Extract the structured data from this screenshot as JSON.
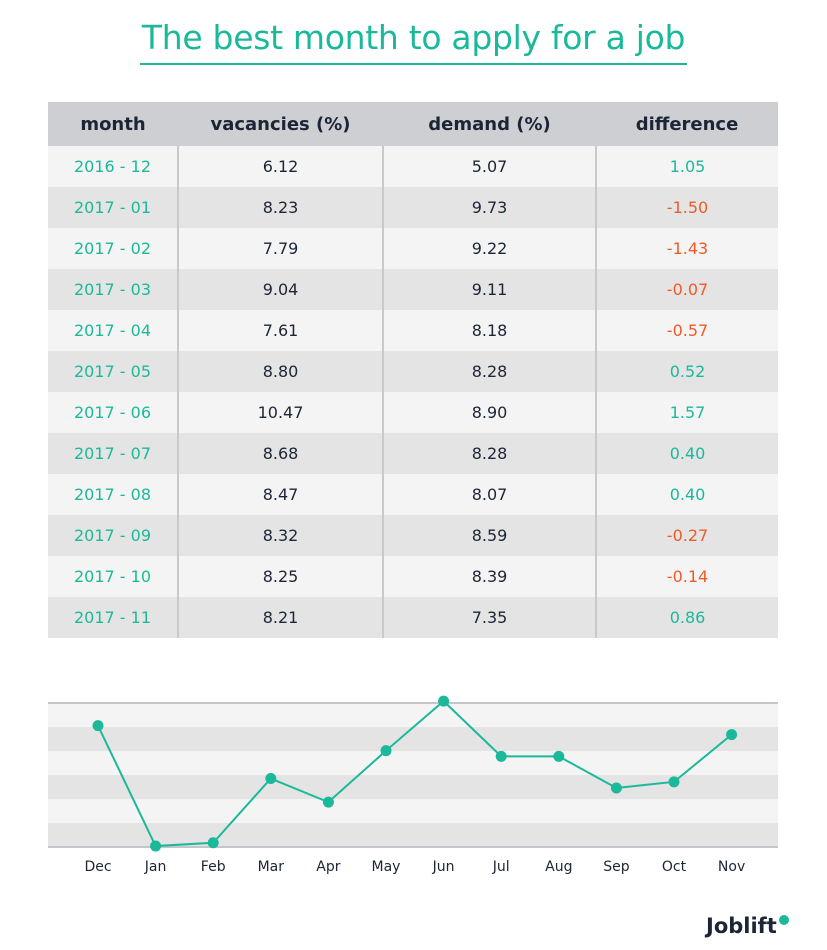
{
  "title": "The best month to apply for a job",
  "table": {
    "headers": [
      "month",
      "vacancies (%)",
      "demand (%)",
      "difference"
    ],
    "rows": [
      [
        "2016 - 12",
        "6.12",
        "5.07",
        "1.05"
      ],
      [
        "2017 - 01",
        "8.23",
        "9.73",
        "-1.50"
      ],
      [
        "2017 - 02",
        "7.79",
        "9.22",
        "-1.43"
      ],
      [
        "2017 - 03",
        "9.04",
        "9.11",
        "-0.07"
      ],
      [
        "2017 - 04",
        "7.61",
        "8.18",
        "-0.57"
      ],
      [
        "2017 - 05",
        "8.80",
        "8.28",
        "0.52"
      ],
      [
        "2017 - 06",
        "10.47",
        "8.90",
        "1.57"
      ],
      [
        "2017 - 07",
        "8.68",
        "8.28",
        "0.40"
      ],
      [
        "2017 - 08",
        "8.47",
        "8.07",
        "0.40"
      ],
      [
        "2017 - 09",
        "8.32",
        "8.59",
        "-0.27"
      ],
      [
        "2017 - 10",
        "8.25",
        "8.39",
        "-0.14"
      ],
      [
        "2017 - 11",
        "8.21",
        "7.35",
        "0.86"
      ]
    ]
  },
  "chart_data": {
    "type": "line",
    "categories": [
      "Dec",
      "Jan",
      "Feb",
      "Mar",
      "Apr",
      "May",
      "Jun",
      "Jul",
      "Aug",
      "Sep",
      "Oct",
      "Nov"
    ],
    "values": [
      1.05,
      -1.5,
      -1.43,
      -0.07,
      -0.57,
      0.52,
      1.57,
      0.4,
      0.4,
      -0.27,
      -0.14,
      0.86
    ],
    "ylim": [
      -1.52,
      1.53
    ],
    "grid": "alternating bands",
    "xlabel": "",
    "ylabel": ""
  },
  "colors": {
    "positive": "#1bb99a",
    "negative": "#f05a28",
    "header": "#cdcfd2",
    "text": "#1c2536"
  },
  "logo": "Joblift"
}
